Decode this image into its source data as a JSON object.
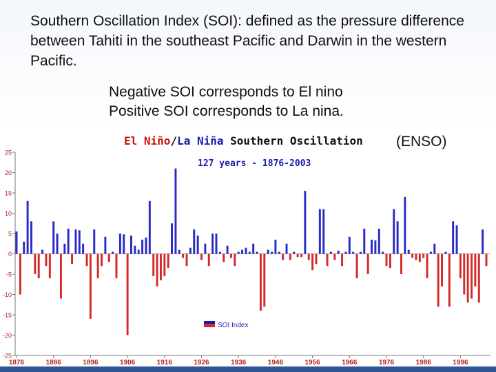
{
  "slide": {
    "intro": "Southern Oscillation Index (SOI): defined as the pressure difference between Tahiti in the southeast Pacific and Darwin in the western Pacific.",
    "notes": [
      "Negative SOI corresponds to El nino",
      "Positive SOI corresponds to La nina."
    ]
  },
  "colors": {
    "positive": "#2a2ac8",
    "negative": "#d42a2a",
    "nino": "#cc1111",
    "nina": "#1a1ab0"
  },
  "chart_data": {
    "type": "bar",
    "title_parts": {
      "nino": "El Niño",
      "sep": "/",
      "nina": "La Niña",
      "rest": "Southern Oscillation",
      "suffix": "(ENSO)"
    },
    "subtitle": "127 years - 1876-2003",
    "legend": "SOI Index",
    "legend_position": "bottom-center",
    "ylim": [
      -25,
      25
    ],
    "yticks": [
      "25",
      "20",
      "15",
      "10",
      "5",
      "0",
      "-5",
      "-10",
      "-15",
      "-20",
      "-25"
    ],
    "xticks": [
      "1876",
      "1886",
      "1896",
      "1906",
      "1916",
      "1926",
      "1936",
      "1946",
      "1956",
      "1966",
      "1976",
      "1986",
      "1996"
    ],
    "x_start": 1876,
    "x_end": 2003,
    "values": [
      5.5,
      -10,
      3,
      13,
      8,
      -5,
      -6,
      1,
      -3,
      -6,
      8,
      5,
      -11,
      2.5,
      6.2,
      -2.5,
      6,
      5.8,
      2.5,
      -3,
      -16,
      6,
      -6,
      -3,
      4.2,
      -2,
      0.5,
      -6,
      5,
      4.8,
      -20,
      4.5,
      2,
      1,
      3.5,
      4,
      13,
      -5.5,
      -8,
      -6.5,
      -5.5,
      -3.5,
      7.5,
      21,
      1,
      -1,
      -3,
      1.5,
      6,
      4.5,
      -1.5,
      2.5,
      -3,
      5,
      5,
      0.5,
      -2,
      2,
      -1,
      -3,
      0.5,
      1,
      1.5,
      0.5,
      2.5,
      0.5,
      -14,
      -13,
      1,
      0.5,
      3.5,
      0.5,
      -1.5,
      2.5,
      -1.5,
      0.5,
      -0.8,
      -0.8,
      15.5,
      -1.5,
      -4,
      -2.5,
      11,
      11,
      -3,
      0.5,
      -1.5,
      0.8,
      -3,
      0.5,
      4.2,
      0.5,
      -6,
      0.5,
      6.2,
      -5,
      3.5,
      3.3,
      6.2,
      0.5,
      -3,
      -3.5,
      11,
      8,
      -5,
      14,
      1,
      -1,
      -1.5,
      -2,
      -1,
      -6,
      0.5,
      2.5,
      -13,
      -8,
      0.5,
      -13,
      8,
      7,
      -6,
      -10,
      -12,
      -11,
      -8,
      -12,
      6,
      -3
    ]
  }
}
